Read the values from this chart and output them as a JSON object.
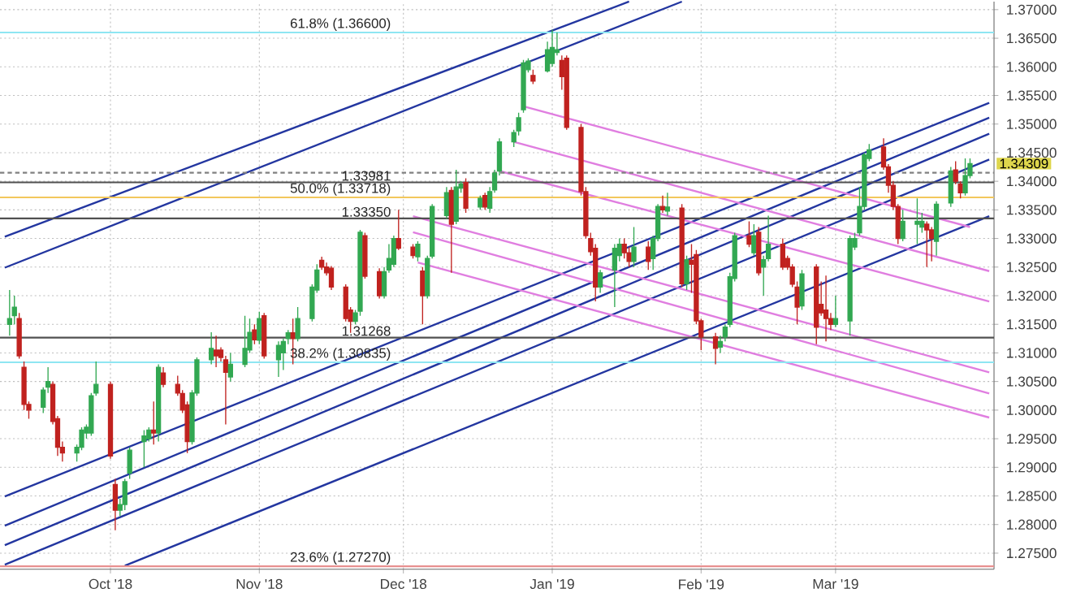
{
  "chart_data": {
    "type": "candlestick",
    "x": [
      "2018-09-10",
      "2018-09-11",
      "2018-09-12",
      "2018-09-13",
      "2018-09-14",
      "2018-09-17",
      "2018-09-18",
      "2018-09-19",
      "2018-09-20",
      "2018-09-21",
      "2018-09-24",
      "2018-09-25",
      "2018-09-26",
      "2018-09-27",
      "2018-09-28",
      "2018-10-01",
      "2018-10-02",
      "2018-10-03",
      "2018-10-04",
      "2018-10-05",
      "2018-10-08",
      "2018-10-09",
      "2018-10-10",
      "2018-10-11",
      "2018-10-12",
      "2018-10-15",
      "2018-10-16",
      "2018-10-17",
      "2018-10-18",
      "2018-10-19",
      "2018-10-22",
      "2018-10-23",
      "2018-10-24",
      "2018-10-25",
      "2018-10-26",
      "2018-10-29",
      "2018-10-30",
      "2018-10-31",
      "2018-11-01",
      "2018-11-02",
      "2018-11-05",
      "2018-11-06",
      "2018-11-07",
      "2018-11-08",
      "2018-11-09",
      "2018-11-12",
      "2018-11-13",
      "2018-11-14",
      "2018-11-15",
      "2018-11-16",
      "2018-11-19",
      "2018-11-20",
      "2018-11-21",
      "2018-11-22",
      "2018-11-23",
      "2018-11-26",
      "2018-11-27",
      "2018-11-28",
      "2018-11-29",
      "2018-11-30",
      "2018-12-03",
      "2018-12-04",
      "2018-12-05",
      "2018-12-06",
      "2018-12-07",
      "2018-12-10",
      "2018-12-11",
      "2018-12-12",
      "2018-12-13",
      "2018-12-14",
      "2018-12-17",
      "2018-12-18",
      "2018-12-19",
      "2018-12-20",
      "2018-12-21",
      "2018-12-24",
      "2018-12-25",
      "2018-12-26",
      "2018-12-27",
      "2018-12-28",
      "2018-12-31",
      "2019-01-01",
      "2019-01-02",
      "2019-01-03",
      "2019-01-04",
      "2019-01-07",
      "2019-01-08",
      "2019-01-09",
      "2019-01-10",
      "2019-01-11",
      "2019-01-14",
      "2019-01-15",
      "2019-01-16",
      "2019-01-17",
      "2019-01-18",
      "2019-01-21",
      "2019-01-22",
      "2019-01-23",
      "2019-01-24",
      "2019-01-25",
      "2019-01-28",
      "2019-01-29",
      "2019-01-30",
      "2019-01-31",
      "2019-02-01",
      "2019-02-04",
      "2019-02-05",
      "2019-02-06",
      "2019-02-07",
      "2019-02-08",
      "2019-02-11",
      "2019-02-12",
      "2019-02-13",
      "2019-02-14",
      "2019-02-15",
      "2019-02-18",
      "2019-02-19",
      "2019-02-20",
      "2019-02-21",
      "2019-02-22",
      "2019-02-25",
      "2019-02-26",
      "2019-02-27",
      "2019-02-28",
      "2019-03-01",
      "2019-03-04",
      "2019-03-05",
      "2019-03-06",
      "2019-03-07",
      "2019-03-08",
      "2019-03-11",
      "2019-03-12",
      "2019-03-13",
      "2019-03-14",
      "2019-03-15",
      "2019-03-18",
      "2019-03-19",
      "2019-03-20",
      "2019-03-21",
      "2019-03-22",
      "2019-03-25",
      "2019-03-26",
      "2019-03-27",
      "2019-03-28",
      "2019-03-29"
    ],
    "ohlc": [
      [
        1.315,
        1.321,
        1.313,
        1.316
      ],
      [
        1.3165,
        1.32,
        1.315,
        1.318
      ],
      [
        1.316,
        1.317,
        1.309,
        1.3095
      ],
      [
        1.3075,
        1.3085,
        1.3,
        1.301
      ],
      [
        1.301,
        1.3015,
        1.2985,
        1.3
      ],
      [
        1.3005,
        1.304,
        1.2995,
        1.3035
      ],
      [
        1.304,
        1.3075,
        1.303,
        1.305
      ],
      [
        1.3045,
        1.305,
        1.2975,
        1.298
      ],
      [
        1.2985,
        1.299,
        1.292,
        1.2935
      ],
      [
        1.2935,
        1.2945,
        1.291,
        1.2925
      ],
      [
        1.2925,
        1.294,
        1.291,
        1.2935
      ],
      [
        1.2935,
        1.297,
        1.293,
        1.2965
      ],
      [
        1.296,
        1.2975,
        1.295,
        1.297
      ],
      [
        1.296,
        1.303,
        1.2955,
        1.3025
      ],
      [
        1.303,
        1.3085,
        1.3025,
        1.3045
      ],
      [
        1.3045,
        1.305,
        1.2915,
        1.292
      ],
      [
        1.287,
        1.288,
        1.279,
        1.2825
      ],
      [
        1.2825,
        1.2845,
        1.2815,
        1.2835
      ],
      [
        1.2835,
        1.288,
        1.2825,
        1.2875
      ],
      [
        1.289,
        1.2935,
        1.288,
        1.293
      ],
      [
        1.2945,
        1.2965,
        1.29,
        1.2955
      ],
      [
        1.295,
        1.297,
        1.2945,
        1.2965
      ],
      [
        1.2965,
        1.3015,
        1.294,
        1.296
      ],
      [
        1.296,
        1.308,
        1.2945,
        1.3075
      ],
      [
        1.3065,
        1.3075,
        1.304,
        1.3045
      ],
      [
        1.3045,
        1.306,
        1.3025,
        1.303
      ],
      [
        1.3029,
        1.3035,
        1.2995,
        1.3
      ],
      [
        1.3009,
        1.3015,
        1.2925,
        1.2945
      ],
      [
        1.2945,
        1.3035,
        1.294,
        1.303
      ],
      [
        1.303,
        1.3092,
        1.3025,
        1.3088
      ],
      [
        1.3088,
        1.3136,
        1.308,
        1.3108
      ],
      [
        1.3105,
        1.313,
        1.3075,
        1.3095
      ],
      [
        1.3105,
        1.311,
        1.3085,
        1.3092
      ],
      [
        1.3088,
        1.3095,
        1.2975,
        1.3066
      ],
      [
        1.3058,
        1.31,
        1.305,
        1.308
      ],
      [
        1.308,
        1.3165,
        1.3075,
        1.3108
      ],
      [
        1.3105,
        1.316,
        1.31,
        1.3136
      ],
      [
        1.314,
        1.315,
        1.3115,
        1.3123
      ],
      [
        1.3122,
        1.3172,
        1.3115,
        1.316
      ],
      [
        1.3165,
        1.317,
        1.309,
        1.3095
      ],
      [
        1.3088,
        1.312,
        1.3058,
        1.3113
      ],
      [
        1.31,
        1.3125,
        1.307,
        1.312
      ],
      [
        1.3125,
        1.314,
        1.3115,
        1.3135
      ],
      [
        1.3135,
        1.316,
        1.308,
        1.3125
      ],
      [
        1.3125,
        1.318,
        1.312,
        1.316
      ],
      [
        1.316,
        1.322,
        1.3155,
        1.3215
      ],
      [
        1.321,
        1.3255,
        1.3205,
        1.3245
      ],
      [
        1.3262,
        1.3268,
        1.3245,
        1.325
      ],
      [
        1.325,
        1.3258,
        1.3235,
        1.324
      ],
      [
        1.3248,
        1.3252,
        1.321,
        1.3215
      ],
      [
        1.3215,
        1.322,
        1.3155,
        1.316
      ],
      [
        1.3175,
        1.318,
        1.3135,
        1.3155
      ],
      [
        1.3155,
        1.3175,
        1.315,
        1.317
      ],
      [
        1.3173,
        1.3315,
        1.3165,
        1.3311
      ],
      [
        1.3305,
        1.331,
        1.323,
        1.3234
      ],
      [
        1.3242,
        1.3248,
        1.3195,
        1.32
      ],
      [
        1.32,
        1.325,
        1.3195,
        1.3242
      ],
      [
        1.3245,
        1.329,
        1.324,
        1.3265
      ],
      [
        1.3255,
        1.3305,
        1.325,
        1.33
      ],
      [
        1.33,
        1.335,
        1.328,
        1.3283
      ],
      [
        1.3285,
        1.329,
        1.3265,
        1.327
      ],
      [
        1.3268,
        1.3295,
        1.326,
        1.329
      ],
      [
        1.3243,
        1.325,
        1.315,
        1.32
      ],
      [
        1.32,
        1.327,
        1.3195,
        1.3265
      ],
      [
        1.3269,
        1.336,
        1.3265,
        1.3356
      ],
      [
        1.334,
        1.339,
        1.3335,
        1.338
      ],
      [
        1.3384,
        1.339,
        1.324,
        1.3325
      ],
      [
        1.333,
        1.342,
        1.3325,
        1.339
      ],
      [
        1.3388,
        1.34,
        1.338,
        1.3395
      ],
      [
        1.3398,
        1.3405,
        1.3345,
        1.3353
      ],
      [
        1.3355,
        1.3375,
        1.335,
        1.337
      ],
      [
        1.3375,
        1.338,
        1.335,
        1.3355
      ],
      [
        1.3353,
        1.339,
        1.3345,
        1.3382
      ],
      [
        1.3385,
        1.342,
        1.338,
        1.3414
      ],
      [
        1.3418,
        1.3475,
        1.341,
        1.3469
      ],
      [
        1.3469,
        1.349,
        1.346,
        1.3485
      ],
      [
        1.3488,
        1.352,
        1.348,
        1.3511
      ],
      [
        1.3525,
        1.3612,
        1.352,
        1.3607
      ],
      [
        1.3595,
        1.3615,
        1.359,
        1.361
      ],
      [
        1.3585,
        1.3595,
        1.357,
        1.3575
      ],
      [
        1.3593,
        1.3644,
        1.359,
        1.363
      ],
      [
        1.3606,
        1.3665,
        1.36,
        1.3634
      ],
      [
        1.3625,
        1.366,
        1.362,
        1.363
      ],
      [
        1.3611,
        1.362,
        1.356,
        1.3583
      ],
      [
        1.3615,
        1.362,
        1.349,
        1.3494
      ],
      [
        1.3494,
        1.35,
        1.3375,
        1.3382
      ],
      [
        1.3382,
        1.339,
        1.33,
        1.3305
      ],
      [
        1.33,
        1.331,
        1.327,
        1.3277
      ],
      [
        1.3283,
        1.329,
        1.319,
        1.3215
      ],
      [
        1.3215,
        1.3245,
        1.3205,
        1.324
      ],
      [
        1.3245,
        1.329,
        1.318,
        1.3283
      ],
      [
        1.327,
        1.33,
        1.326,
        1.329
      ],
      [
        1.329,
        1.33,
        1.3265,
        1.3275
      ],
      [
        1.3275,
        1.3285,
        1.325,
        1.326
      ],
      [
        1.326,
        1.332,
        1.325,
        1.3285
      ],
      [
        1.3285,
        1.3295,
        1.3245,
        1.326
      ],
      [
        1.3265,
        1.3305,
        1.3245,
        1.33
      ],
      [
        1.33,
        1.336,
        1.3295,
        1.3356
      ],
      [
        1.3356,
        1.3375,
        1.3345,
        1.335
      ],
      [
        1.3348,
        1.338,
        1.334,
        1.3355
      ],
      [
        1.3353,
        1.336,
        1.3215,
        1.3221
      ],
      [
        1.3221,
        1.327,
        1.321,
        1.3263
      ],
      [
        1.3262,
        1.329,
        1.3205,
        1.3255
      ],
      [
        1.3272,
        1.328,
        1.315,
        1.3156
      ],
      [
        1.3156,
        1.316,
        1.3105,
        1.3128
      ],
      [
        1.3128,
        1.3135,
        1.308,
        1.3108
      ],
      [
        1.311,
        1.313,
        1.31,
        1.312
      ],
      [
        1.3128,
        1.315,
        1.312,
        1.3145
      ],
      [
        1.315,
        1.324,
        1.3145,
        1.3233
      ],
      [
        1.323,
        1.331,
        1.3225,
        1.3305
      ],
      [
        1.3305,
        1.333,
        1.3285,
        1.329
      ],
      [
        1.3275,
        1.3325,
        1.327,
        1.3305
      ],
      [
        1.3311,
        1.332,
        1.3235,
        1.324
      ],
      [
        1.325,
        1.327,
        1.32,
        1.3263
      ],
      [
        1.3265,
        1.334,
        1.326,
        1.329
      ],
      [
        1.329,
        1.33,
        1.3245,
        1.325
      ],
      [
        1.3265,
        1.327,
        1.3245,
        1.325
      ],
      [
        1.325,
        1.3255,
        1.3215,
        1.322
      ],
      [
        1.3215,
        1.3225,
        1.315,
        1.318
      ],
      [
        1.3182,
        1.3245,
        1.3175,
        1.3238
      ],
      [
        1.325,
        1.3255,
        1.3115,
        1.3145
      ],
      [
        1.3185,
        1.3225,
        1.3165,
        1.317
      ],
      [
        1.3175,
        1.3235,
        1.312,
        1.316
      ],
      [
        1.316,
        1.317,
        1.314,
        1.315
      ],
      [
        1.315,
        1.32,
        1.3145,
        1.316
      ],
      [
        1.3156,
        1.3305,
        1.313,
        1.33
      ],
      [
        1.3285,
        1.331,
        1.328,
        1.33
      ],
      [
        1.331,
        1.339,
        1.3305,
        1.3356
      ],
      [
        1.3356,
        1.345,
        1.335,
        1.3446
      ],
      [
        1.344,
        1.3465,
        1.3435,
        1.3455
      ],
      [
        1.346,
        1.3475,
        1.342,
        1.3425
      ],
      [
        1.3425,
        1.343,
        1.338,
        1.3393
      ],
      [
        1.3393,
        1.34,
        1.335,
        1.3356
      ],
      [
        1.3356,
        1.336,
        1.329,
        1.33
      ],
      [
        1.33,
        1.335,
        1.3295,
        1.333
      ],
      [
        1.3325,
        1.337,
        1.329,
        1.333
      ],
      [
        1.332,
        1.3345,
        1.331,
        1.333
      ],
      [
        1.3325,
        1.333,
        1.325,
        1.3315
      ],
      [
        1.3315,
        1.332,
        1.326,
        1.33
      ],
      [
        1.3295,
        1.3365,
        1.327,
        1.336
      ],
      [
        1.3362,
        1.3425,
        1.3355,
        1.3418
      ],
      [
        1.342,
        1.3435,
        1.3395,
        1.34
      ],
      [
        1.3395,
        1.34,
        1.337,
        1.338
      ],
      [
        1.338,
        1.344,
        1.3375,
        1.341
      ],
      [
        1.341,
        1.344,
        1.3405,
        1.34309
      ]
    ],
    "colors": [
      "#32a852",
      "#32a852",
      "#c0221f",
      "#c0221f",
      "#c0221f",
      "#32a852",
      "#32a852",
      "#c0221f",
      "#c0221f",
      "#c0221f",
      "#32a852",
      "#32a852",
      "#32a852",
      "#32a852",
      "#32a852",
      "#c0221f",
      "#c0221f",
      "#32a852",
      "#32a852",
      "#32a852",
      "#32a852",
      "#32a852",
      "#c0221f",
      "#32a852",
      "#c0221f",
      "#c0221f",
      "#c0221f",
      "#c0221f",
      "#32a852",
      "#32a852",
      "#32a852",
      "#c0221f",
      "#c0221f",
      "#c0221f",
      "#32a852",
      "#32a852",
      "#32a852",
      "#c0221f",
      "#32a852",
      "#c0221f",
      "#32a852",
      "#32a852",
      "#32a852",
      "#c0221f",
      "#32a852",
      "#32a852",
      "#32a852",
      "#c0221f",
      "#c0221f",
      "#c0221f",
      "#c0221f",
      "#c0221f",
      "#32a852",
      "#32a852",
      "#c0221f",
      "#c0221f",
      "#32a852",
      "#32a852",
      "#32a852",
      "#c0221f",
      "#c0221f",
      "#32a852",
      "#c0221f",
      "#32a852",
      "#32a852",
      "#32a852",
      "#c0221f",
      "#32a852",
      "#32a852",
      "#c0221f",
      "#32a852",
      "#c0221f",
      "#32a852",
      "#32a852",
      "#32a852",
      "#32a852",
      "#32a852",
      "#32a852",
      "#32a852",
      "#c0221f",
      "#32a852",
      "#32a852",
      "#32a852",
      "#c0221f",
      "#c0221f",
      "#c0221f",
      "#c0221f",
      "#c0221f",
      "#c0221f",
      "#32a852",
      "#32a852",
      "#32a852",
      "#c0221f",
      "#c0221f",
      "#32a852",
      "#c0221f",
      "#32a852",
      "#32a852",
      "#c0221f",
      "#32a852",
      "#c0221f",
      "#32a852",
      "#c0221f",
      "#c0221f",
      "#c0221f",
      "#c0221f",
      "#32a852",
      "#32a852",
      "#32a852",
      "#32a852",
      "#c0221f",
      "#32a852",
      "#c0221f",
      "#32a852",
      "#32a852",
      "#c0221f",
      "#c0221f",
      "#c0221f",
      "#c0221f",
      "#32a852",
      "#c0221f",
      "#c0221f",
      "#c0221f",
      "#c0221f",
      "#32a852",
      "#32a852",
      "#32a852",
      "#32a852",
      "#32a852",
      "#32a852",
      "#c0221f",
      "#c0221f",
      "#c0221f",
      "#c0221f",
      "#32a852",
      "#32a852",
      "#32a852",
      "#c0221f",
      "#c0221f",
      "#32a852",
      "#32a852",
      "#c0221f",
      "#c0221f",
      "#32a852",
      "#32a852"
    ],
    "series": [
      {
        "type": "line",
        "color": "#2336a0",
        "x": [
          "2018-09-09",
          "2019-04-02"
        ],
        "values": [
          1.2849,
          1.3537
        ]
      },
      {
        "type": "line",
        "color": "#2336a0",
        "x": [
          "2018-09-09",
          "2019-04-02"
        ],
        "values": [
          1.2798,
          1.3511
        ]
      },
      {
        "type": "line",
        "color": "#2336a0",
        "x": [
          "2018-09-09",
          "2019-04-02"
        ],
        "values": [
          1.2764,
          1.3483
        ]
      },
      {
        "type": "line",
        "color": "#2336a0",
        "x": [
          "2018-09-09",
          "2019-04-02"
        ],
        "values": [
          1.273,
          1.3438
        ]
      },
      {
        "type": "line",
        "color": "#2336a0",
        "x": [
          "2018-10-04",
          "2019-04-02"
        ],
        "values": [
          1.2728,
          1.3339
        ]
      },
      {
        "type": "line",
        "color": "#2336a0",
        "x": [
          "2018-09-09",
          "2019-01-17"
        ],
        "values": [
          1.3303,
          1.3714
        ]
      },
      {
        "type": "line",
        "color": "#2336a0",
        "x": [
          "2018-09-09",
          "2019-01-28"
        ],
        "values": [
          1.3249,
          1.3714
        ]
      },
      {
        "type": "line",
        "color": "#e07ee0",
        "x": [
          "2018-12-26",
          "2019-03-29"
        ],
        "values": [
          1.3531,
          1.332
        ]
      },
      {
        "type": "line",
        "color": "#e07ee0",
        "x": [
          "2018-12-24",
          "2019-04-02"
        ],
        "values": [
          1.3469,
          1.3243
        ]
      },
      {
        "type": "line",
        "color": "#e07ee0",
        "x": [
          "2018-12-21",
          "2019-04-02"
        ],
        "values": [
          1.3418,
          1.319
        ]
      },
      {
        "type": "line",
        "color": "#e07ee0",
        "x": [
          "2018-12-03",
          "2019-04-02"
        ],
        "values": [
          1.3339,
          1.3066
        ]
      },
      {
        "type": "line",
        "color": "#e07ee0",
        "x": [
          "2018-12-03",
          "2019-04-02"
        ],
        "values": [
          1.3311,
          1.3029
        ]
      },
      {
        "type": "line",
        "color": "#e07ee0",
        "x": [
          "2018-12-04",
          "2019-04-02"
        ],
        "values": [
          1.3258,
          1.2987
        ]
      }
    ],
    "ref_lines": [
      {
        "axis": "y",
        "value": 1.366,
        "label": "61.8% (1.36600)",
        "color": "#8ee6f2"
      },
      {
        "axis": "y",
        "value": 1.3415,
        "color": "#808080",
        "line_style": "dashed"
      },
      {
        "axis": "y",
        "value": 1.33981,
        "label": "1.33981",
        "color": "#505050"
      },
      {
        "axis": "y",
        "value": 1.33718,
        "label": "50.0% (1.33718)",
        "color": "#f2c75c"
      },
      {
        "axis": "y",
        "value": 1.3335,
        "label": "1.33350",
        "color": "#505050"
      },
      {
        "axis": "y",
        "value": 1.31268,
        "label": "1.31268",
        "color": "#505050"
      },
      {
        "axis": "y",
        "value": 1.30835,
        "label": "38.2% (1.30835)",
        "color": "#8ee6f2"
      },
      {
        "axis": "y",
        "value": 1.2727,
        "label": "23.6% (1.27270)",
        "color": "#e89090"
      }
    ],
    "annotations": [
      "1.34309"
    ],
    "xlim": [
      "2018-09-08",
      "2019-04-03"
    ],
    "xticks": [
      {
        "value": "2018-10-01",
        "label": "Oct '18"
      },
      {
        "value": "2018-11-01",
        "label": "Nov '18"
      },
      {
        "value": "2018-12-01",
        "label": "Dec '18"
      },
      {
        "value": "2019-01-01",
        "label": "Jan '19"
      },
      {
        "value": "2019-02-01",
        "label": "Feb '19"
      },
      {
        "value": "2019-03-01",
        "label": "Mar '19"
      }
    ],
    "ylim": [
      1.2722,
      1.3714
    ],
    "yticks": [
      {
        "value": 1.275,
        "label": "1.27500"
      },
      {
        "value": 1.28,
        "label": "1.28000"
      },
      {
        "value": 1.285,
        "label": "1.28500"
      },
      {
        "value": 1.29,
        "label": "1.29000"
      },
      {
        "value": 1.295,
        "label": "1.29500"
      },
      {
        "value": 1.3,
        "label": "1.30000"
      },
      {
        "value": 1.305,
        "label": "1.30500"
      },
      {
        "value": 1.31,
        "label": "1.31000"
      },
      {
        "value": 1.315,
        "label": "1.31500"
      },
      {
        "value": 1.32,
        "label": "1.32000"
      },
      {
        "value": 1.325,
        "label": "1.32500"
      },
      {
        "value": 1.33,
        "label": "1.33000"
      },
      {
        "value": 1.335,
        "label": "1.33500"
      },
      {
        "value": 1.34,
        "label": "1.34000"
      },
      {
        "value": 1.345,
        "label": "1.34500"
      },
      {
        "value": 1.35,
        "label": "1.35000"
      },
      {
        "value": 1.355,
        "label": "1.35500"
      },
      {
        "value": 1.36,
        "label": "1.36000"
      },
      {
        "value": 1.365,
        "label": "1.36500"
      },
      {
        "value": 1.37,
        "label": "1.37000"
      }
    ],
    "grid": true
  }
}
